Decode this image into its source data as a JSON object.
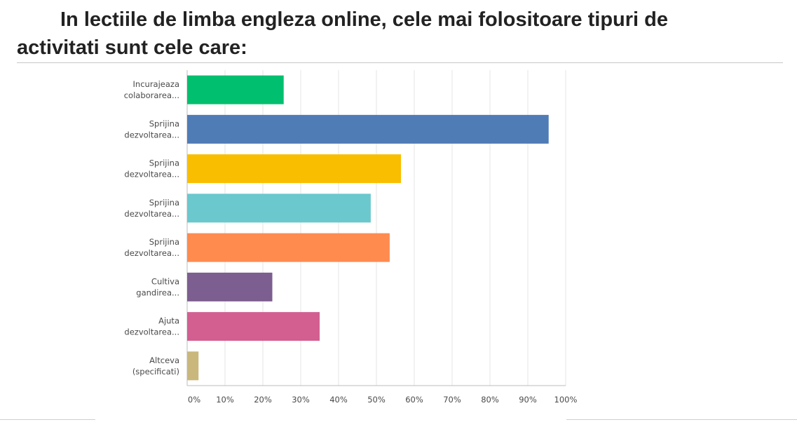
{
  "chart_data": {
    "type": "bar",
    "orientation": "horizontal",
    "title": "In lectiile de limba engleza online, cele mai folositoare tipuri de activitati sunt cele care:",
    "categories": [
      [
        "Incurajeaza",
        "colaborarea..."
      ],
      [
        "Sprijina",
        "dezvoltarea..."
      ],
      [
        "Sprijina",
        "dezvoltarea..."
      ],
      [
        "Sprijina",
        "dezvoltarea..."
      ],
      [
        "Sprijina",
        "dezvoltarea..."
      ],
      [
        "Cultiva",
        "gandirea..."
      ],
      [
        "Ajuta",
        "dezvoltarea..."
      ],
      [
        "Altceva",
        "(specificati)"
      ]
    ],
    "values": [
      25.5,
      95.5,
      56.5,
      48.5,
      53.5,
      22.5,
      35,
      3
    ],
    "colors": [
      "#00bf6f",
      "#507cb6",
      "#f9be00",
      "#6bc8cd",
      "#ff8b4f",
      "#7d5e90",
      "#d25f90",
      "#c9b77c"
    ],
    "xlim": [
      0,
      100
    ],
    "ticks": [
      "0%",
      "10%",
      "20%",
      "30%",
      "40%",
      "50%",
      "60%",
      "70%",
      "80%",
      "90%",
      "100%"
    ],
    "grid": true,
    "xlabel": "",
    "ylabel": ""
  }
}
